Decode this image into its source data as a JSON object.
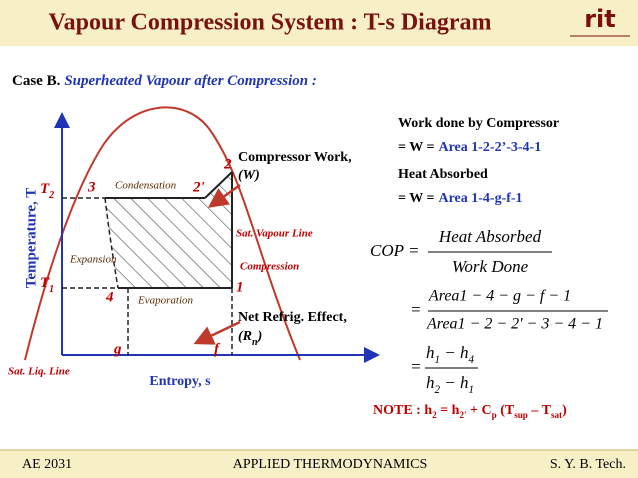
{
  "header": {
    "title": "Vapour Compression System : T-s Diagram",
    "logo": "rit"
  },
  "subtitle": {
    "case": "Case B.",
    "text": "Superheated Vapour after Compression :"
  },
  "diagram": {
    "y_axis_label": "Temperature, T",
    "x_axis_label": "Entropy, s",
    "t2": {
      "base": "T",
      "sub": "2"
    },
    "t1": {
      "base": "T",
      "sub": "1"
    },
    "points": {
      "p1": "1",
      "p2": "2",
      "p2prime": "2'",
      "p3": "3",
      "p4": "4",
      "g": "g",
      "f": "f"
    },
    "process_labels": {
      "condensation": "Condensation",
      "expansion": "Expansion",
      "evaporation": "Evaporation",
      "compression": "Compression"
    },
    "line_labels": {
      "sat_vapour": "Sat. Vapour Line",
      "sat_liquid": "Sat. Liq. Line"
    },
    "compressor_work": {
      "line1": "Compressor Work,",
      "line2": "(W)"
    },
    "net_refrig": {
      "line1": "Net Refrig. Effect,",
      "line2_open": "(R",
      "line2_sub": "n",
      "line2_close": ")"
    }
  },
  "right": {
    "work_heading": "Work done by Compressor",
    "work_eq": {
      "prefix": "= W =",
      "area": "Area 1-2-2’-3-4-1"
    },
    "heat_heading": "Heat Absorbed",
    "heat_eq": {
      "prefix": "= W =",
      "area": "Area 1-4-g-f-1"
    },
    "cop": {
      "lhs": "COP =",
      "num": "Heat Absorbed",
      "den": "Work Done",
      "eq2": "=",
      "num2": "Area1 − 4 − g − f − 1",
      "den2": "Area1 − 2 − 2' − 3 − 4 − 1",
      "eq3": "=",
      "num3": [
        {
          "t": "h"
        },
        {
          "t": "1",
          "sub": true
        },
        {
          "t": " − h"
        },
        {
          "t": "4",
          "sub": true
        }
      ],
      "den3": [
        {
          "t": "h"
        },
        {
          "t": "2",
          "sub": true
        },
        {
          "t": " − h"
        },
        {
          "t": "1",
          "sub": true
        }
      ]
    },
    "note": [
      {
        "t": "NOTE : "
      },
      {
        "t": "h"
      },
      {
        "t": "2",
        "sub": true
      },
      {
        "t": " = h"
      },
      {
        "t": "2'",
        "sub": true
      },
      {
        "t": " + C"
      },
      {
        "t": "p",
        "sub": true
      },
      {
        "t": " (T"
      },
      {
        "t": "sup",
        "sub": true
      },
      {
        "t": " – T"
      },
      {
        "t": "sat",
        "sub": true
      },
      {
        "t": ")"
      }
    ]
  },
  "footer": {
    "left": "AE 2031",
    "center": "APPLIED THERMODYNAMICS",
    "right": "S. Y. B. Tech."
  }
}
